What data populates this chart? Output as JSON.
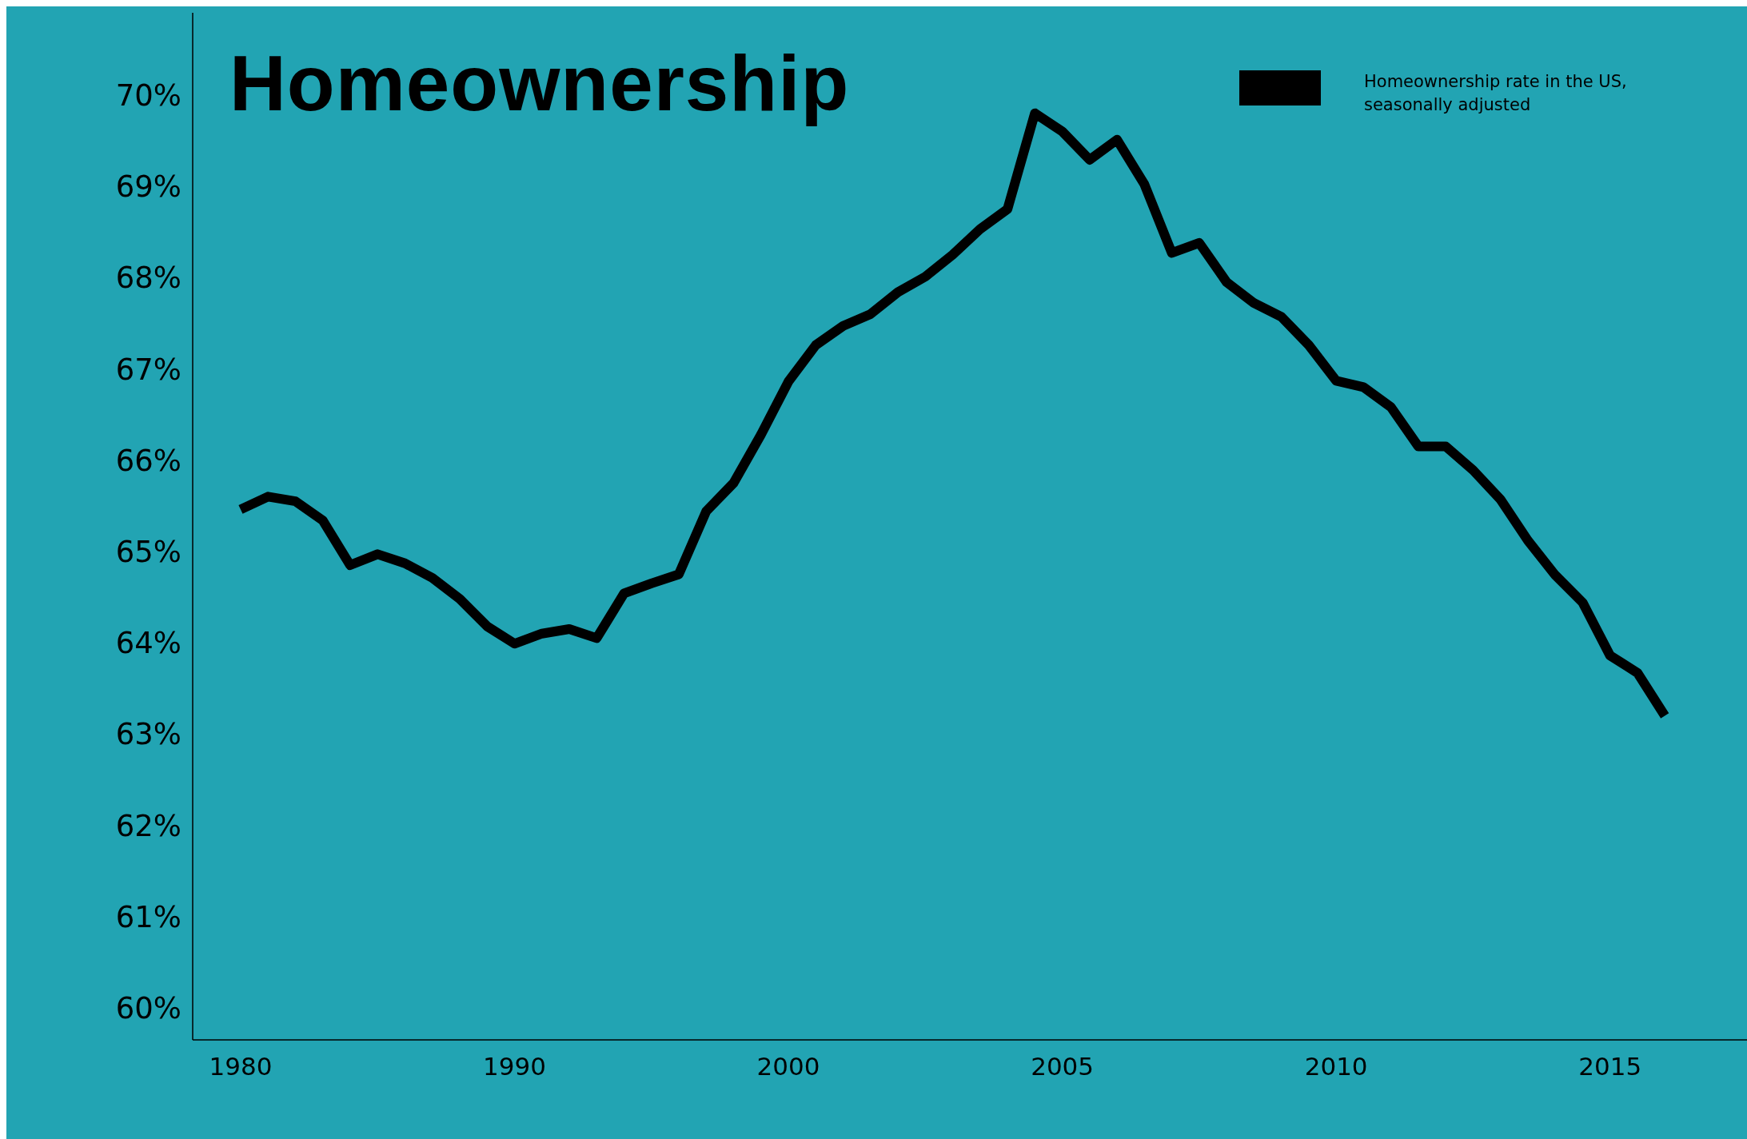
{
  "chart_data": {
    "type": "line",
    "title": "Homeownership",
    "categories": [
      "1980",
      null,
      null,
      null,
      null,
      null,
      null,
      null,
      null,
      null,
      "1990",
      null,
      null,
      null,
      null,
      null,
      null,
      null,
      null,
      null,
      "2000",
      null,
      null,
      null,
      null,
      null,
      null,
      null,
      null,
      null,
      "2005",
      null,
      null,
      null,
      null,
      null,
      null,
      null,
      null,
      null,
      "2010",
      null,
      null,
      null,
      null,
      null,
      null,
      null,
      null,
      null,
      "2015",
      null,
      null
    ],
    "series": [
      {
        "name": "Homeownership rate in the US, seasonally adjusted",
        "color": "#000000",
        "values": [
          65.46,
          65.6,
          65.55,
          65.34,
          64.85,
          64.97,
          64.87,
          64.71,
          64.48,
          64.18,
          63.99,
          64.1,
          64.15,
          64.05,
          64.54,
          64.65,
          64.75,
          65.44,
          65.75,
          66.28,
          66.86,
          67.26,
          67.47,
          67.6,
          67.84,
          68.01,
          68.25,
          68.53,
          68.75,
          69.8,
          69.6,
          69.29,
          69.51,
          69.02,
          68.27,
          68.38,
          67.95,
          67.72,
          67.57,
          67.26,
          66.87,
          66.8,
          66.58,
          66.15,
          66.15,
          65.89,
          65.57,
          65.12,
          64.74,
          64.44,
          63.86,
          63.67,
          63.2
        ]
      }
    ],
    "ylim": [
      59.65,
      70.9
    ],
    "yticks": [
      {
        "value": 60,
        "label": "60%"
      },
      {
        "value": 61,
        "label": "61%"
      },
      {
        "value": 62,
        "label": "62%"
      },
      {
        "value": 63,
        "label": "63%"
      },
      {
        "value": 64,
        "label": "64%"
      },
      {
        "value": 65,
        "label": "65%"
      },
      {
        "value": 66,
        "label": "66%"
      },
      {
        "value": 67,
        "label": "67%"
      },
      {
        "value": 68,
        "label": "68%"
      },
      {
        "value": 69,
        "label": "69%"
      },
      {
        "value": 70,
        "label": "70%"
      }
    ],
    "grid": false,
    "legend": "top right",
    "marker": "none",
    "line_style": "solid"
  }
}
